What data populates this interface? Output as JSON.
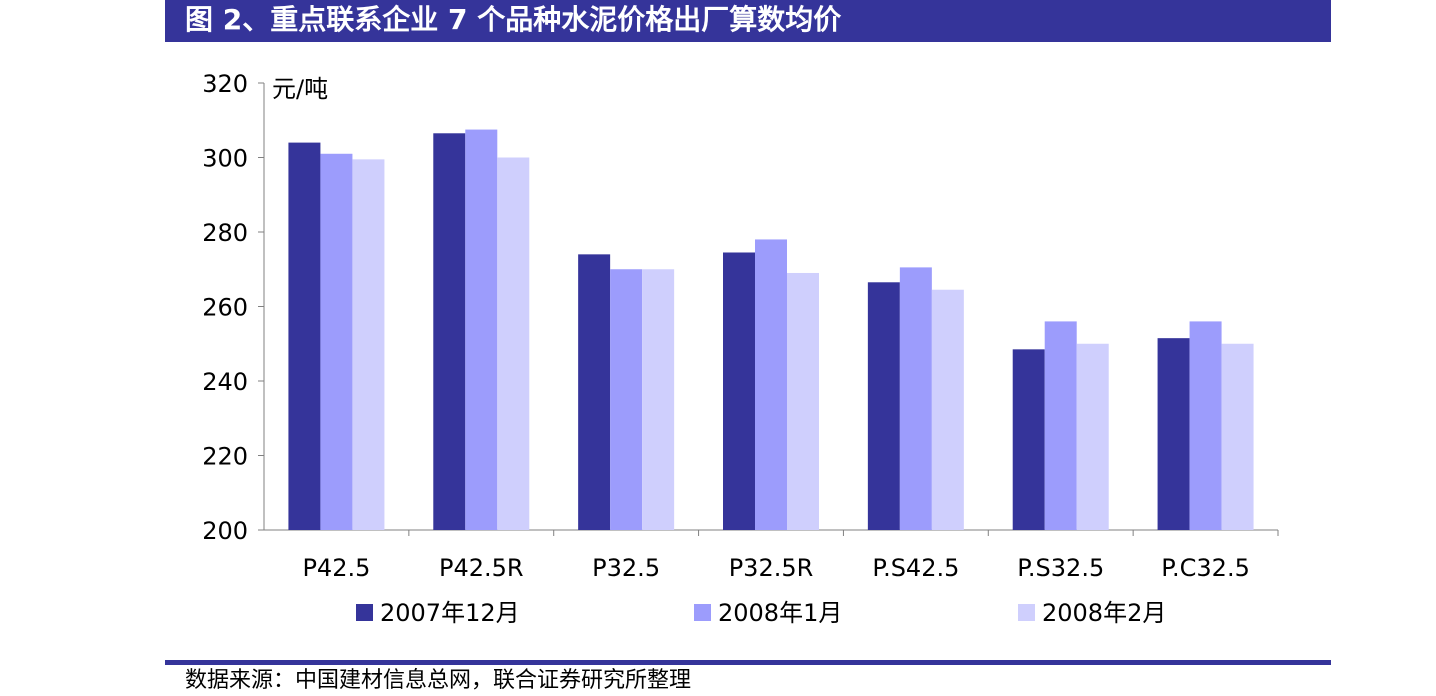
{
  "page": {
    "title": "图 2、重点联系企业 7 个品种水泥价格出厂算数均价",
    "source": "数据来源：中国建材信息总网，联合证券研究所整理"
  },
  "chart_data": {
    "type": "bar",
    "title": "",
    "xlabel": "",
    "ylabel": "元/吨",
    "ylim": [
      200,
      320
    ],
    "yticks": [
      200,
      220,
      240,
      260,
      280,
      300,
      320
    ],
    "grid": false,
    "legend_position": "bottom",
    "categories": [
      "P42.5",
      "P42.5R",
      "P32.5",
      "P32.5R",
      "P.S42.5",
      "P.S32.5",
      "P.C32.5"
    ],
    "series": [
      {
        "name": "2007年12月",
        "color": "#35349a",
        "values": [
          304,
          306.5,
          274,
          274.5,
          266.5,
          248.5,
          251.5
        ]
      },
      {
        "name": "2008年1月",
        "color": "#9c9cfc",
        "values": [
          301,
          307.5,
          270,
          278,
          270.5,
          256,
          256
        ]
      },
      {
        "name": "2008年2月",
        "color": "#cfcffd",
        "values": [
          299.5,
          300,
          270,
          269,
          264.5,
          250,
          250
        ]
      }
    ]
  }
}
